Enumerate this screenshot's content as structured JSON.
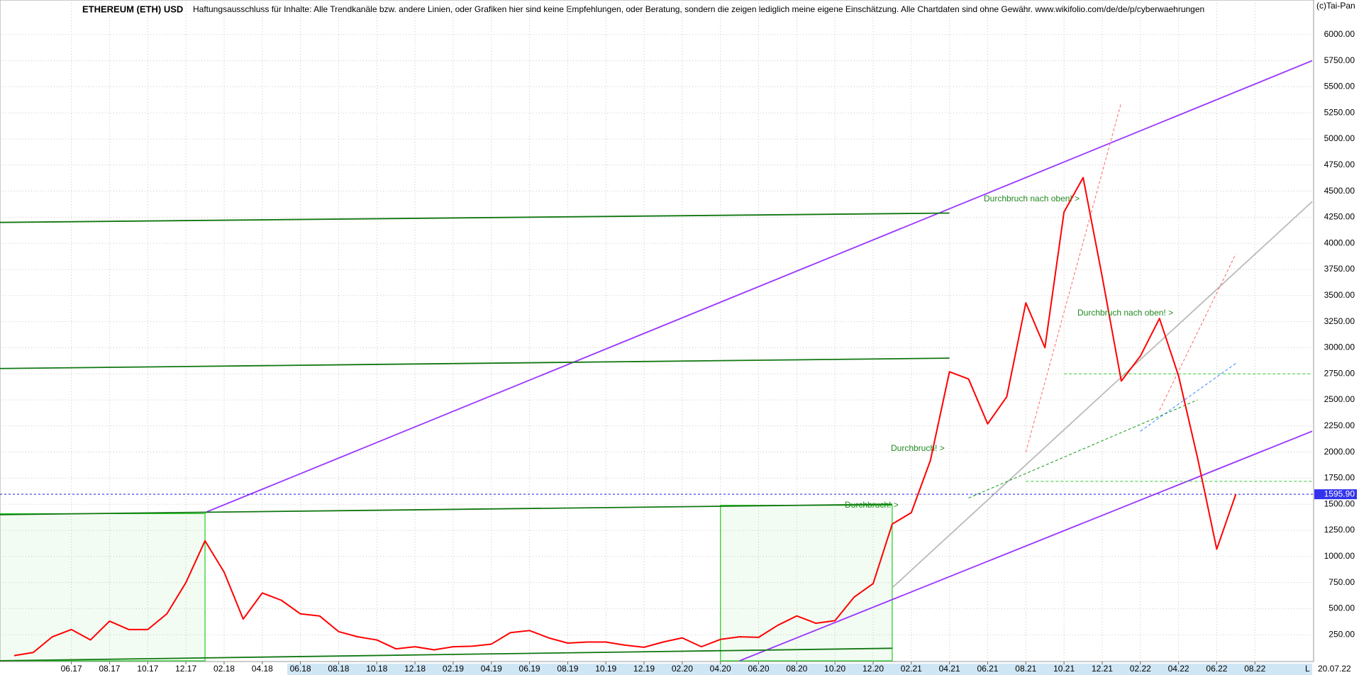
{
  "chart_data": {
    "type": "line",
    "title": "ETHEREUM (ETH) USD",
    "subtitle": "Haftungsausschluss für Inhalte: Alle Trendkanäle bzw. andere Linien, oder Grafiken hier sind keine Empfehlungen, oder Beratung, sondern die zeigen lediglich meine eigene Einschätzung. Alle Chartdaten sind ohne Gewähr.  www.wikifolio.com/de/de/p/cyberwaehrungen",
    "copyright": "(c)Tai-Pan",
    "date_label": "20.07.22",
    "corner_label": "L",
    "x": [
      "03.17",
      "04.17",
      "05.17",
      "06.17",
      "07.17",
      "08.17",
      "09.17",
      "10.17",
      "11.17",
      "12.17",
      "01.18",
      "02.18",
      "03.18",
      "04.18",
      "05.18",
      "06.18",
      "07.18",
      "08.18",
      "09.18",
      "10.18",
      "11.18",
      "12.18",
      "01.19",
      "02.19",
      "03.19",
      "04.19",
      "05.19",
      "06.19",
      "07.19",
      "08.19",
      "09.19",
      "10.19",
      "11.19",
      "12.19",
      "01.20",
      "02.20",
      "03.20",
      "04.20",
      "05.20",
      "06.20",
      "07.20",
      "08.20",
      "09.20",
      "10.20",
      "11.20",
      "12.20",
      "01.21",
      "02.21",
      "03.21",
      "04.21",
      "05.21",
      "06.21",
      "07.21",
      "08.21",
      "09.21",
      "10.21",
      "11.21",
      "12.21",
      "01.22",
      "02.22",
      "03.22",
      "04.22",
      "05.22",
      "06.22",
      "07.22"
    ],
    "series": [
      {
        "name": "ETHEREUM (ETH) USD",
        "color": "#ff0000",
        "values": [
          50,
          80,
          230,
          300,
          200,
          380,
          300,
          300,
          450,
          750,
          1150,
          850,
          400,
          650,
          580,
          450,
          430,
          280,
          230,
          200,
          115,
          135,
          105,
          135,
          140,
          160,
          270,
          290,
          220,
          170,
          180,
          180,
          150,
          130,
          180,
          220,
          135,
          205,
          230,
          225,
          340,
          430,
          360,
          385,
          610,
          740,
          1310,
          1420,
          1920,
          2770,
          2700,
          2270,
          2530,
          3430,
          3000,
          4300,
          4630,
          3680,
          2680,
          2920,
          3280,
          2730,
          1940,
          1070,
          1596
        ]
      }
    ],
    "xlim": [
      "02.17",
      "11.22"
    ],
    "ylim": [
      0,
      6250
    ],
    "xticks": [
      "06.17",
      "08.17",
      "10.17",
      "12.17",
      "02.18",
      "04.18",
      "06.18",
      "08.18",
      "10.18",
      "12.18",
      "02.19",
      "04.19",
      "06.19",
      "08.19",
      "10.19",
      "12.19",
      "02.20",
      "04.20",
      "06.20",
      "08.20",
      "10.20",
      "12.20",
      "02.21",
      "04.21",
      "06.21",
      "08.21",
      "10.21",
      "12.21",
      "02.22",
      "04.22",
      "06.22",
      "08.22"
    ],
    "yticks": [
      {
        "value": 250,
        "label": "250.00"
      },
      {
        "value": 500,
        "label": "500.00"
      },
      {
        "value": 750,
        "label": "750.00"
      },
      {
        "value": 1000,
        "label": "1000.00"
      },
      {
        "value": 1250,
        "label": "1250.00"
      },
      {
        "value": 1500,
        "label": "1500.00"
      },
      {
        "value": 1750,
        "label": "1750.00"
      },
      {
        "value": 2000,
        "label": "2000.00"
      },
      {
        "value": 2250,
        "label": "2250.00"
      },
      {
        "value": 2500,
        "label": "2500.00"
      },
      {
        "value": 2750,
        "label": "2750.00"
      },
      {
        "value": 3000,
        "label": "3000.00"
      },
      {
        "value": 3250,
        "label": "3250.00"
      },
      {
        "value": 3500,
        "label": "3500.00"
      },
      {
        "value": 3750,
        "label": "3750.00"
      },
      {
        "value": 4000,
        "label": "4000.00"
      },
      {
        "value": 4250,
        "label": "4250.00"
      },
      {
        "value": 4500,
        "label": "4500.00"
      },
      {
        "value": 4750,
        "label": "4750.00"
      },
      {
        "value": 5000,
        "label": "5000.00"
      },
      {
        "value": 5250,
        "label": "5250.00"
      },
      {
        "value": 5500,
        "label": "5500.00"
      },
      {
        "value": 5750,
        "label": "5750.00"
      },
      {
        "value": 6000,
        "label": "6000.00"
      }
    ],
    "grid": true,
    "price_line": {
      "value": 1595.9,
      "label": "1595.90",
      "color": "#3333ee"
    },
    "zones": [
      {
        "x": [
          "02.17",
          "01.18"
        ],
        "y": [
          0,
          1410
        ],
        "color": "#22cc22"
      },
      {
        "x": [
          "04.20",
          "01.21"
        ],
        "y": [
          0,
          1490
        ],
        "color": "#22cc22"
      }
    ],
    "trendlines": [
      {
        "x": [
          "01.18",
          "11.22"
        ],
        "y": [
          1420,
          5750
        ],
        "color": "#9933ff",
        "dashed": false
      },
      {
        "x": [
          "05.20",
          "11.22"
        ],
        "y": [
          0,
          2200
        ],
        "color": "#9933ff",
        "dashed": false
      },
      {
        "x": [
          "02.17",
          "04.21"
        ],
        "y": [
          4200,
          4290
        ],
        "color": "#117711",
        "dashed": false
      },
      {
        "x": [
          "02.17",
          "04.21"
        ],
        "y": [
          2800,
          2900
        ],
        "color": "#117711",
        "dashed": false
      },
      {
        "x": [
          "02.17",
          "01.21"
        ],
        "y": [
          1400,
          1500
        ],
        "color": "#117711",
        "dashed": false
      },
      {
        "x": [
          "02.17",
          "01.21"
        ],
        "y": [
          0,
          120
        ],
        "color": "#117711",
        "dashed": false
      },
      {
        "x": [
          "01.21",
          "11.22"
        ],
        "y": [
          700,
          4400
        ],
        "color": "#bbbbbb",
        "dashed": false
      },
      {
        "x": [
          "08.21",
          "11.22"
        ],
        "y": [
          1720,
          1720
        ],
        "color": "#33cc33",
        "dashed": true
      },
      {
        "x": [
          "10.21",
          "11.22"
        ],
        "y": [
          2750,
          2750
        ],
        "color": "#33cc33",
        "dashed": true
      },
      {
        "x": [
          "05.21",
          "05.22"
        ],
        "y": [
          1560,
          2500
        ],
        "color": "#119911",
        "dashed": true
      },
      {
        "x": [
          "08.21",
          "01.22"
        ],
        "y": [
          2000,
          5350
        ],
        "color": "#ff6666",
        "dashed": true
      },
      {
        "x": [
          "03.22",
          "07.22"
        ],
        "y": [
          2400,
          3900
        ],
        "color": "#ff6666",
        "dashed": true
      },
      {
        "x": [
          "02.22",
          "07.22"
        ],
        "y": [
          2200,
          2850
        ],
        "color": "#3388ff",
        "dashed": true
      }
    ],
    "annotations": [
      "Durchbruch nach oben! >",
      "Durchbruch nach oben! >",
      "Durchbruch! >",
      "Durchbruch! >"
    ]
  }
}
